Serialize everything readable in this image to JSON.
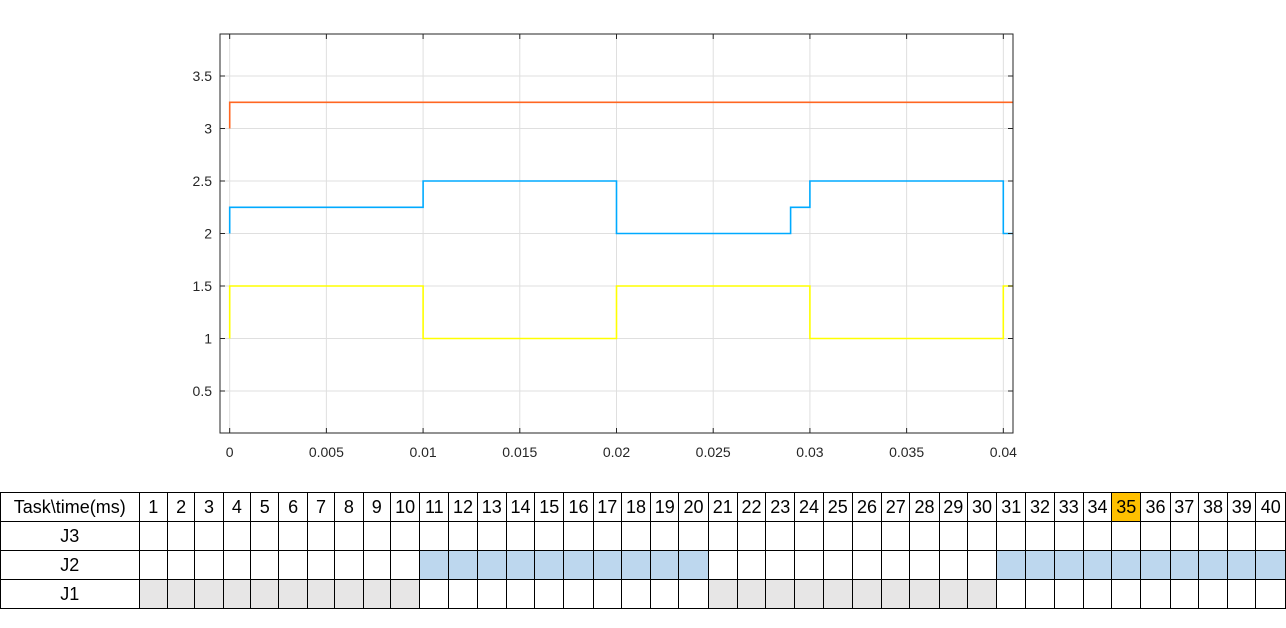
{
  "chart_data": {
    "type": "line",
    "title": "",
    "xlabel": "",
    "ylabel": "",
    "xlim": [
      -0.0005,
      0.0405
    ],
    "ylim": [
      0.1,
      3.9
    ],
    "grid": true,
    "legend": "none",
    "xticks": [
      0,
      0.005,
      0.01,
      0.015,
      0.02,
      0.025,
      0.03,
      0.035,
      0.04
    ],
    "xtick_labels": [
      "0",
      "0.005",
      "0.01",
      "0.015",
      "0.02",
      "0.025",
      "0.03",
      "0.035",
      "0.04"
    ],
    "yticks": [
      0.5,
      1,
      1.5,
      2,
      2.5,
      3,
      3.5
    ],
    "ytick_labels": [
      "0.5",
      "1",
      "1.5",
      "2",
      "2.5",
      "3",
      "3.5"
    ],
    "series": [
      {
        "color": "#ffff00",
        "x": [
          0,
          0,
          0.01,
          0.01,
          0.02,
          0.02,
          0.03,
          0.03,
          0.04,
          0.04,
          0.0405
        ],
        "y": [
          1,
          1.5,
          1.5,
          1,
          1,
          1.5,
          1.5,
          1,
          1,
          1.5,
          1.5
        ]
      },
      {
        "color": "#00aaff",
        "x": [
          0,
          0,
          0.01,
          0.01,
          0.02,
          0.02,
          0.029,
          0.029,
          0.03,
          0.03,
          0.04,
          0.04,
          0.0405
        ],
        "y": [
          2,
          2.25,
          2.25,
          2.5,
          2.5,
          2,
          2,
          2.25,
          2.25,
          2.5,
          2.5,
          2,
          2
        ]
      },
      {
        "color": "#ff6622",
        "x": [
          0,
          0,
          0.0405
        ],
        "y": [
          3,
          3.25,
          3.25
        ]
      }
    ]
  },
  "schedule": {
    "corner_label": "Task\\time(ms)",
    "time_labels": [
      "1",
      "2",
      "3",
      "4",
      "5",
      "6",
      "7",
      "8",
      "9",
      "10",
      "11",
      "12",
      "13",
      "14",
      "15",
      "16",
      "17",
      "18",
      "19",
      "20",
      "21",
      "22",
      "23",
      "24",
      "25",
      "26",
      "27",
      "28",
      "29",
      "30",
      "31",
      "32",
      "33",
      "34",
      "35",
      "36",
      "37",
      "38",
      "39",
      "40"
    ],
    "highlight_time": "35",
    "highlight_color": "#ffc000",
    "rows": [
      {
        "label": "J3",
        "color": "#bdd7ee",
        "active": []
      },
      {
        "label": "J2",
        "color": "#bdd7ee",
        "active": [
          11,
          12,
          13,
          14,
          15,
          16,
          17,
          18,
          19,
          20,
          31,
          32,
          33,
          34,
          35,
          36,
          37,
          38,
          39,
          40
        ]
      },
      {
        "label": "J1",
        "color": "#e7e6e6",
        "active": [
          1,
          2,
          3,
          4,
          5,
          6,
          7,
          8,
          9,
          10,
          21,
          22,
          23,
          24,
          25,
          26,
          27,
          28,
          29,
          30
        ]
      }
    ]
  }
}
